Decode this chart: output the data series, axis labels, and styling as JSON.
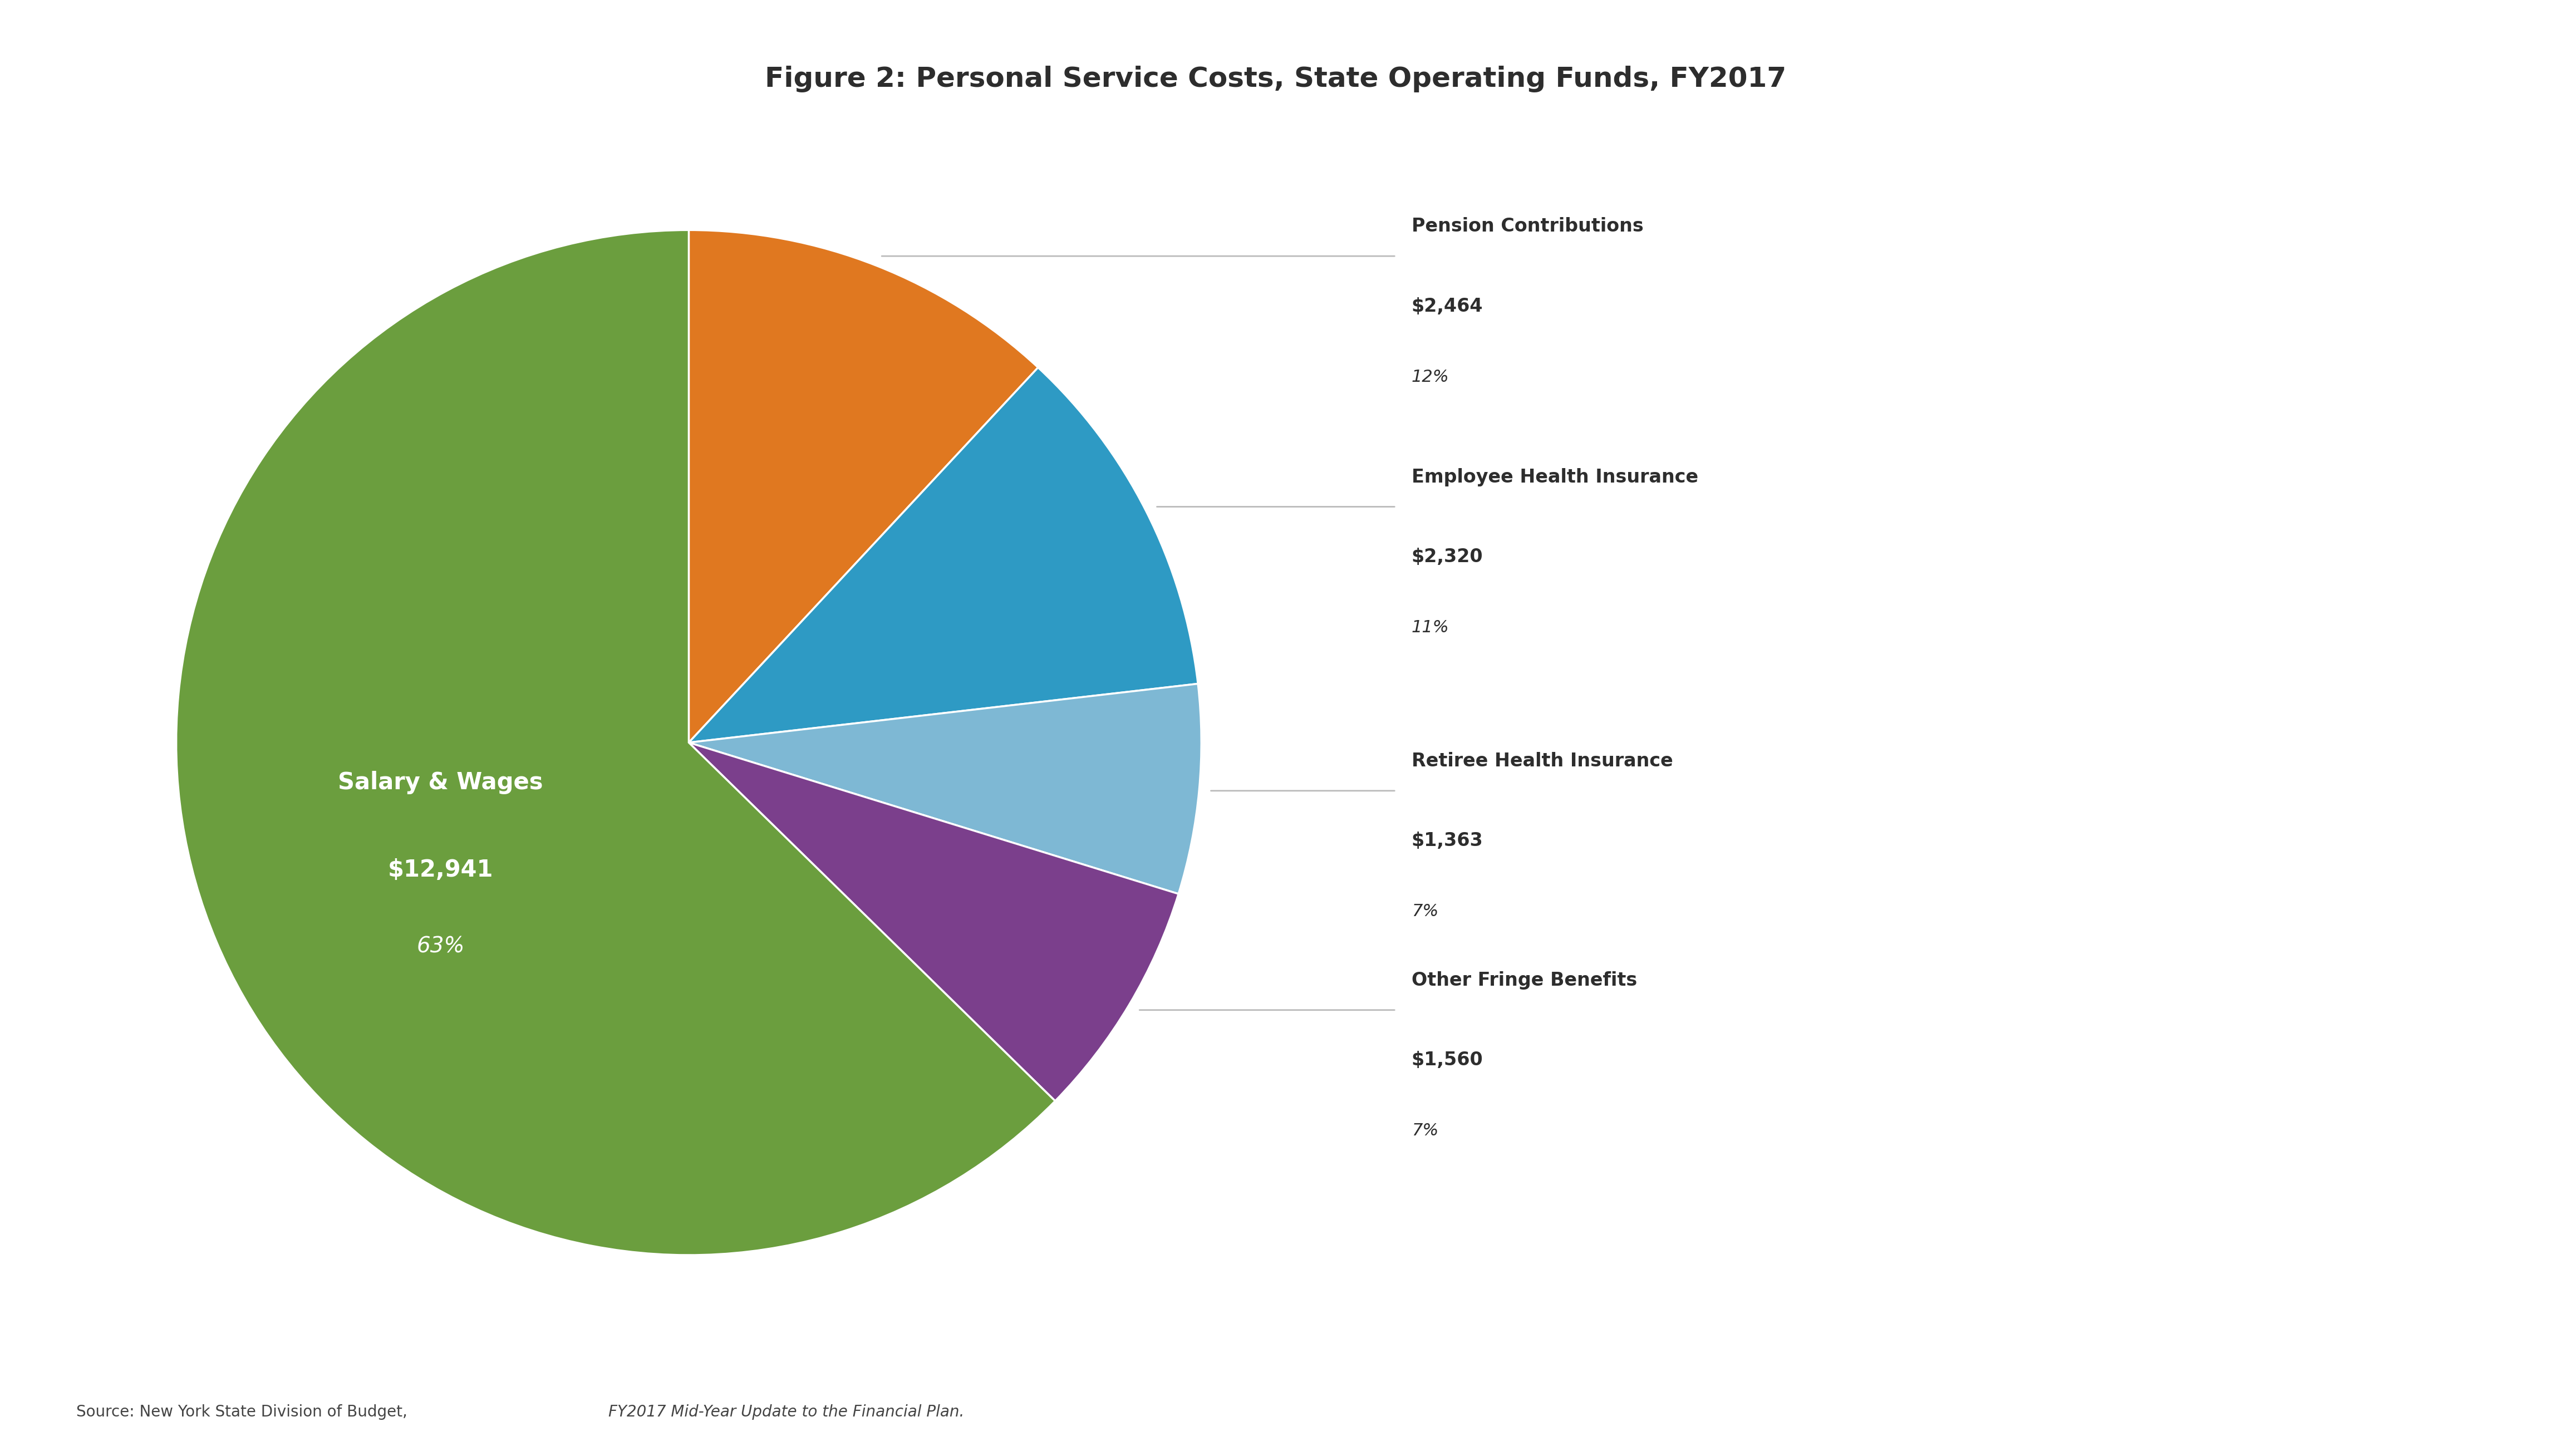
{
  "title": "Figure 2: Personal Service Costs, State Operating Funds, FY2017",
  "title_fontsize": 36,
  "plot_values": [
    2464,
    2320,
    1363,
    1560,
    12941
  ],
  "plot_colors": [
    "#E07820",
    "#2E9AC4",
    "#7EB8D4",
    "#7B3F8C",
    "#6B9E3E"
  ],
  "outside_labels": [
    {
      "wedge_idx": 0,
      "label": "Pension Contributions",
      "amount": "$2,464",
      "pct": "12%"
    },
    {
      "wedge_idx": 1,
      "label": "Employee Health Insurance",
      "amount": "$2,320",
      "pct": "11%"
    },
    {
      "wedge_idx": 2,
      "label": "Retiree Health Insurance",
      "amount": "$1,363",
      "pct": "7%"
    },
    {
      "wedge_idx": 3,
      "label": "Other Fringe Benefits",
      "amount": "$1,560",
      "pct": "7%"
    }
  ],
  "inside_label": {
    "wedge_idx": 4,
    "line1": "Salary & Wages",
    "line2": "$12,941",
    "line3": "63%"
  },
  "source_normal": "Source: New York State Division of Budget, ",
  "source_italic": "FY2017 Mid-Year Update to the Financial Plan.",
  "background_color": "#FFFFFF",
  "text_color": "#2D2D2D",
  "source_color": "#444444"
}
